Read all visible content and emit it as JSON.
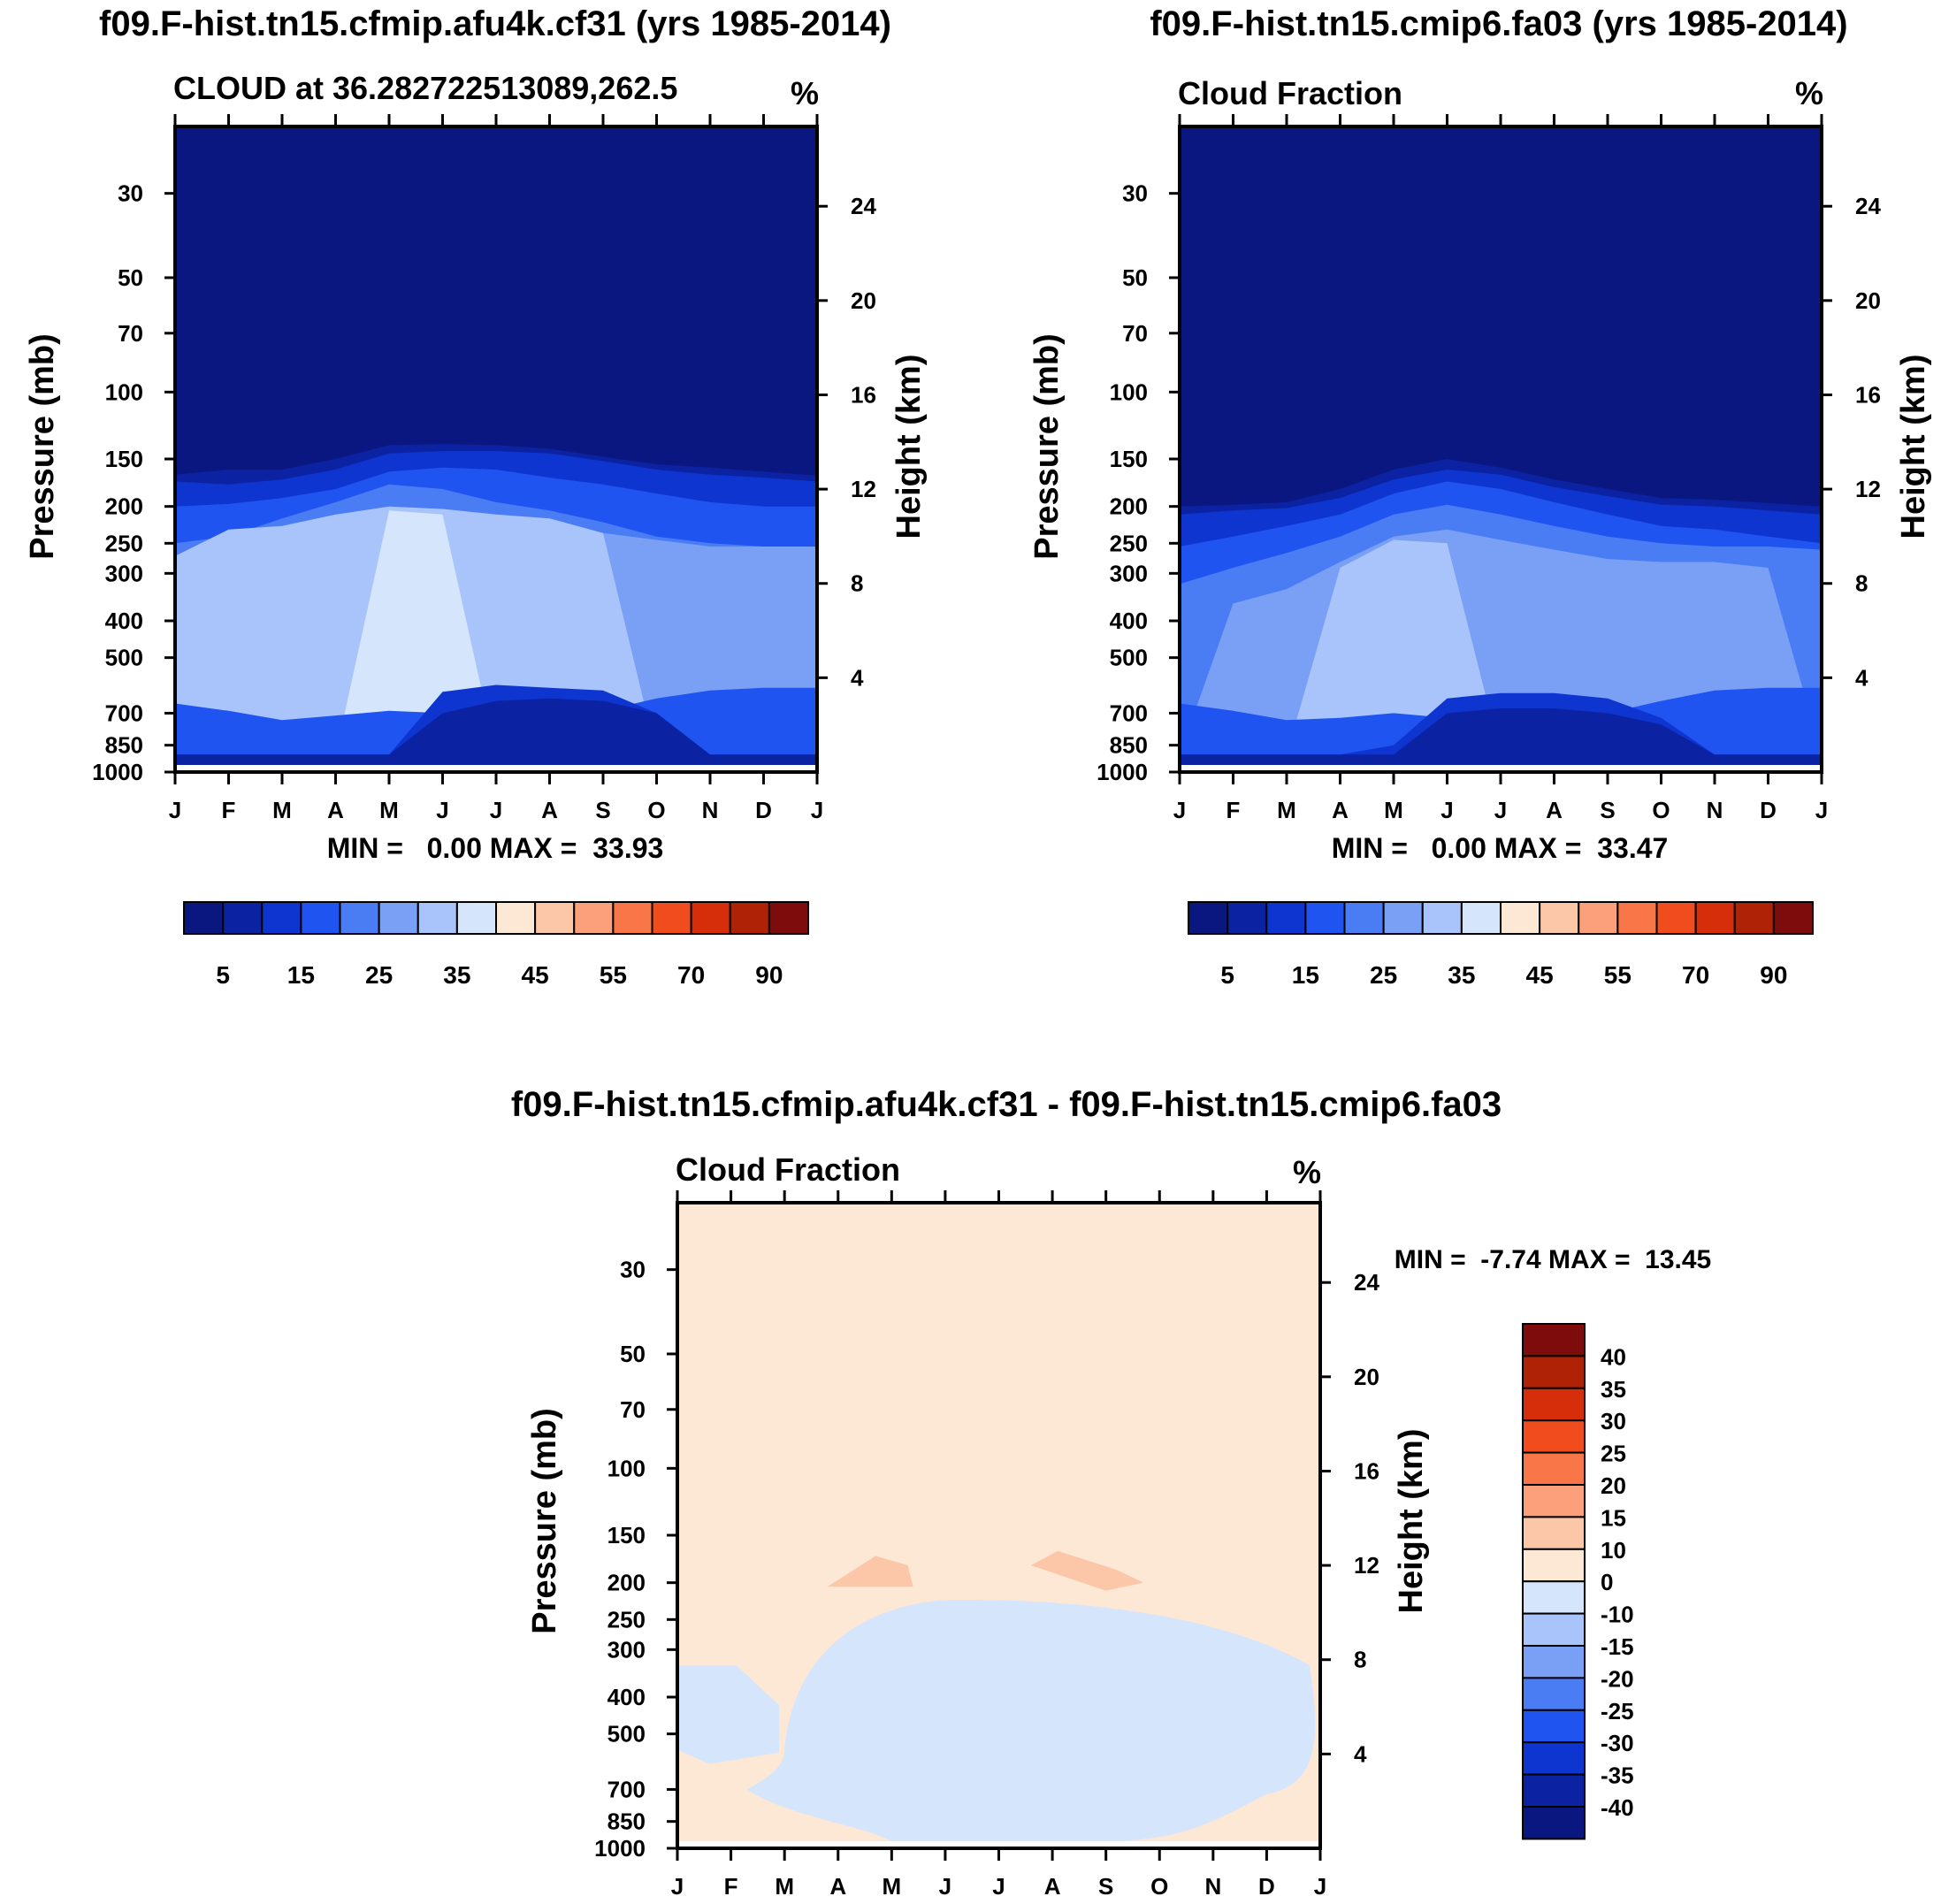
{
  "chart_data": [
    {
      "type": "contour",
      "title": "f09.F-hist.tn15.cfmip.afu4k.cf31 (yrs 1985-2014)",
      "left_label": "CLOUD at 36.282722513089,262.5",
      "units": "%",
      "ylabel": "Pressure (mb)",
      "ylabel_right": "Height (km)",
      "stats": "MIN =   0.00 MAX =  33.93",
      "min": 0.0,
      "max": 33.93,
      "palette_key": "abs",
      "layers": [
        {
          "level": 0,
          "top": [
            165,
            160,
            160,
            150,
            138,
            137,
            138,
            141,
            148,
            155,
            158,
            162,
            166
          ]
        },
        {
          "level": 5,
          "top": [
            172,
            175,
            170,
            160,
            145,
            143,
            143,
            145,
            152,
            160,
            165,
            168,
            172
          ]
        },
        {
          "level": 10,
          "top": [
            200,
            197,
            190,
            180,
            162,
            158,
            160,
            168,
            175,
            185,
            195,
            200,
            200
          ]
        },
        {
          "level": 15,
          "top": [
            250,
            240,
            215,
            195,
            175,
            180,
            195,
            205,
            220,
            240,
            250,
            255,
            255
          ]
        },
        {
          "level": 20,
          "top": [
            320,
            295,
            260,
            240,
            215,
            205,
            215,
            225,
            235,
            245,
            255,
            255,
            255
          ]
        },
        {
          "level": 25,
          "top": [
            270,
            230,
            225,
            210,
            200,
            203,
            210,
            215,
            235,
            900,
            900,
            900,
            900
          ]
        },
        {
          "level": 30,
          "top": [
            900,
            900,
            900,
            900,
            205,
            210,
            900,
            900,
            900,
            900,
            900,
            900,
            900
          ]
        }
      ],
      "lows": [
        {
          "level": 10,
          "top": [
            660,
            690,
            730,
            710,
            690,
            700,
            750,
            730,
            690,
            640,
            610,
            600,
            600
          ]
        },
        {
          "level": 5,
          "top": [
            900,
            900,
            900,
            900,
            900,
            615,
            590,
            600,
            610,
            700,
            900,
            900,
            900
          ]
        },
        {
          "level": 0,
          "top": [
            900,
            900,
            900,
            900,
            900,
            700,
            650,
            640,
            650,
            700,
            900,
            900,
            900
          ]
        }
      ],
      "x_ticks": [
        "J",
        "F",
        "M",
        "A",
        "M",
        "J",
        "J",
        "A",
        "S",
        "O",
        "N",
        "D",
        "J"
      ],
      "p_ticks": [
        30,
        50,
        70,
        100,
        150,
        200,
        250,
        300,
        400,
        500,
        700,
        850,
        1000
      ],
      "h_ticks": [
        4,
        8,
        12,
        16,
        20,
        24
      ]
    },
    {
      "type": "contour",
      "title": "f09.F-hist.tn15.cmip6.fa03 (yrs 1985-2014)",
      "left_label": "Cloud Fraction",
      "units": "%",
      "ylabel": "Pressure (mb)",
      "ylabel_right": "Height (km)",
      "stats": "MIN =   0.00 MAX =  33.47",
      "min": 0.0,
      "max": 33.47,
      "palette_key": "abs",
      "layers": [
        {
          "level": 0,
          "top": [
            200,
            198,
            195,
            180,
            160,
            150,
            158,
            170,
            180,
            190,
            192,
            196,
            200
          ]
        },
        {
          "level": 5,
          "top": [
            210,
            205,
            202,
            190,
            170,
            160,
            165,
            178,
            188,
            198,
            200,
            205,
            210
          ]
        },
        {
          "level": 10,
          "top": [
            255,
            240,
            225,
            210,
            185,
            172,
            180,
            195,
            210,
            225,
            230,
            240,
            250
          ]
        },
        {
          "level": 15,
          "top": [
            320,
            290,
            265,
            240,
            210,
            198,
            210,
            225,
            240,
            250,
            255,
            255,
            260
          ]
        },
        {
          "level": 20,
          "top": [
            900,
            360,
            330,
            280,
            240,
            230,
            245,
            260,
            275,
            280,
            280,
            290,
            900
          ]
        },
        {
          "level": 25,
          "top": [
            900,
            900,
            900,
            290,
            245,
            250,
            900,
            900,
            900,
            900,
            900,
            900,
            900
          ]
        }
      ],
      "lows": [
        {
          "level": 10,
          "top": [
            660,
            690,
            730,
            720,
            700,
            720,
            760,
            750,
            700,
            650,
            610,
            600,
            600
          ]
        },
        {
          "level": 5,
          "top": [
            900,
            900,
            900,
            900,
            850,
            640,
            620,
            620,
            640,
            720,
            900,
            900,
            900
          ]
        },
        {
          "level": 0,
          "top": [
            900,
            900,
            900,
            900,
            900,
            700,
            680,
            680,
            700,
            750,
            900,
            900,
            900
          ]
        }
      ],
      "x_ticks": [
        "J",
        "F",
        "M",
        "A",
        "M",
        "J",
        "J",
        "A",
        "S",
        "O",
        "N",
        "D",
        "J"
      ],
      "p_ticks": [
        30,
        50,
        70,
        100,
        150,
        200,
        250,
        300,
        400,
        500,
        700,
        850,
        1000
      ],
      "h_ticks": [
        4,
        8,
        12,
        16,
        20,
        24
      ]
    },
    {
      "type": "contour",
      "title": "f09.F-hist.tn15.cfmip.afu4k.cf31 - f09.F-hist.tn15.cmip6.fa03",
      "left_label": "Cloud Fraction",
      "units": "%",
      "ylabel": "Pressure (mb)",
      "ylabel_right": "Height (km)",
      "stats": "MIN =  -7.74 MAX =  13.45",
      "min": -7.74,
      "max": 13.45,
      "palette_key": "diff",
      "x_ticks": [
        "J",
        "F",
        "M",
        "A",
        "M",
        "J",
        "J",
        "A",
        "S",
        "O",
        "N",
        "D",
        "J"
      ],
      "p_ticks": [
        30,
        50,
        70,
        100,
        150,
        200,
        250,
        300,
        400,
        500,
        700,
        850,
        1000
      ],
      "h_ticks": [
        4,
        8,
        12,
        16,
        20,
        24
      ]
    }
  ],
  "colorbar_abs": {
    "labels": [
      "5",
      "15",
      "25",
      "35",
      "45",
      "55",
      "70",
      "90"
    ],
    "colors": [
      "#0a1780",
      "#0b23a3",
      "#0f35d0",
      "#1f54f0",
      "#4a7cf4",
      "#7aa0f6",
      "#a9c4fa",
      "#d5e5fc",
      "#fde8d6",
      "#fcc7a8",
      "#fba07a",
      "#f97648",
      "#f04c1e",
      "#d62e0a",
      "#b02206",
      "#7e0c0c"
    ]
  },
  "colorbar_diff": {
    "labels": [
      "40",
      "35",
      "30",
      "25",
      "20",
      "15",
      "10",
      "0",
      "-10",
      "-15",
      "-20",
      "-25",
      "-30",
      "-35",
      "-40"
    ],
    "colors": [
      "#7e0c0c",
      "#b02206",
      "#d62e0a",
      "#f04c1e",
      "#f97648",
      "#fba07a",
      "#fcc7a8",
      "#fde8d6",
      "#d5e5fc",
      "#a9c4fa",
      "#7aa0f6",
      "#4a7cf4",
      "#1f54f0",
      "#0f35d0",
      "#0b23a3",
      "#0a1780"
    ]
  },
  "diff_colors": {
    "pos_small": "#fde8d6",
    "pos_mid": "#fcc7a8",
    "neg_small": "#d5e5fc"
  }
}
